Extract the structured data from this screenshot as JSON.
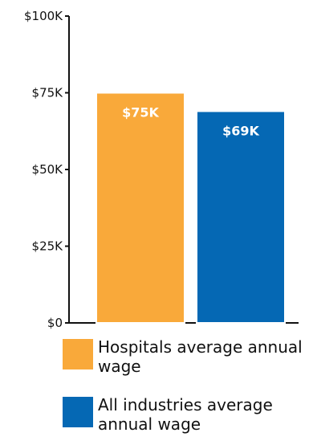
{
  "chart_data": {
    "type": "bar",
    "categories": [
      "Hospitals average annual wage",
      "All industries average annual wage"
    ],
    "values": [
      75,
      69
    ],
    "value_labels": [
      "$75K",
      "$69K"
    ],
    "colors": [
      "#F9A93A",
      "#0568B4"
    ],
    "ylim": [
      0,
      100
    ],
    "yticks": [
      0,
      25,
      50,
      75,
      100
    ],
    "ytick_labels": [
      "$0",
      "$25K",
      "$50K",
      "$75K",
      "$100K"
    ],
    "grid": false,
    "legend_position": "bottom",
    "title": "",
    "xlabel": "",
    "ylabel": ""
  },
  "legend": {
    "items": [
      {
        "label": "Hospitals average annual wage",
        "color": "#F9A93A"
      },
      {
        "label": "All industries average annual wage",
        "color": "#0568B4"
      }
    ]
  }
}
